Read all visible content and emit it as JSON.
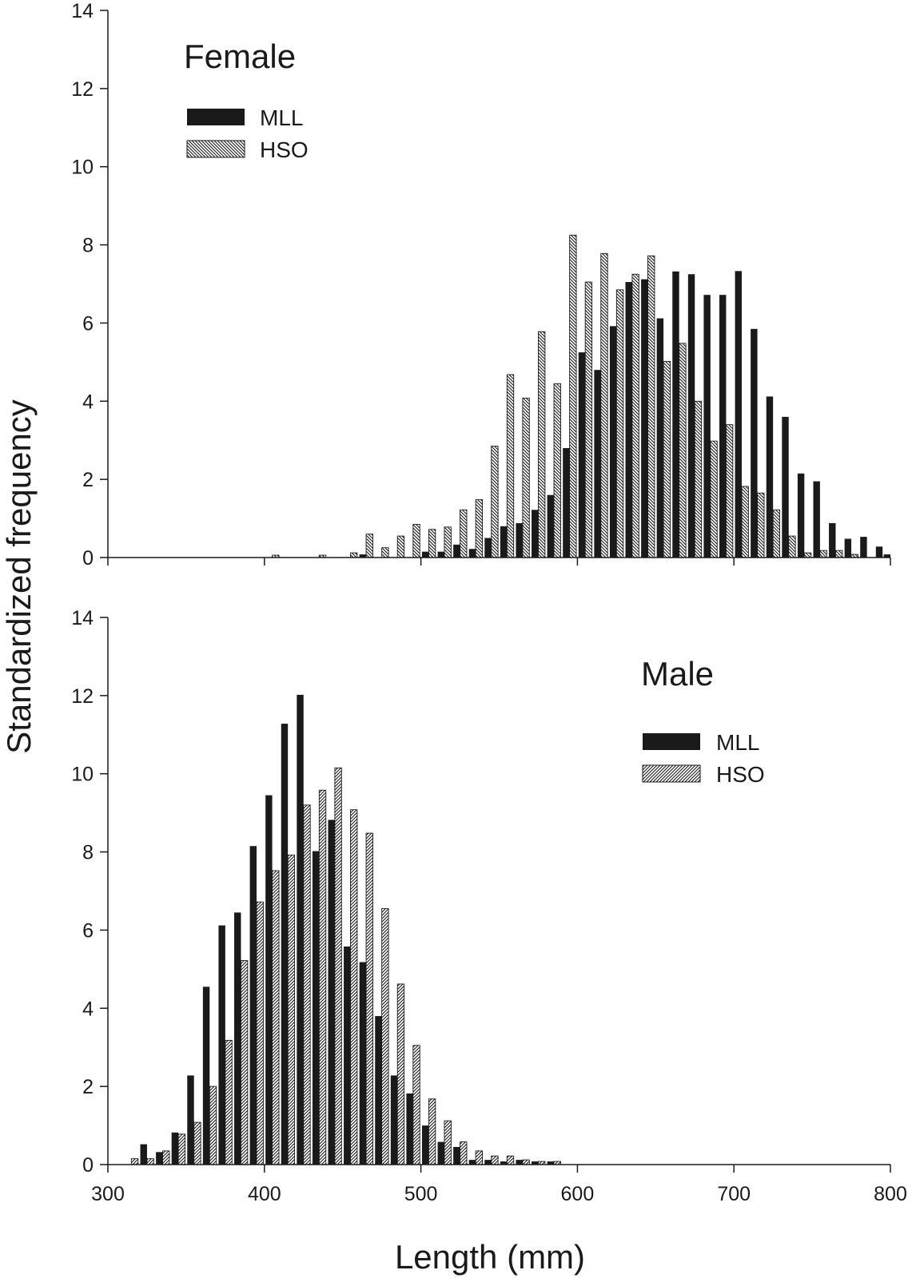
{
  "figure": {
    "xlabel": "Length (mm)",
    "ylabel": "Standardized frequency",
    "colors": {
      "mll": "#1a1a1a",
      "hso_fill": "#ffffff",
      "hso_hatch": "#1a1a1a",
      "axis": "#1a1a1a"
    }
  },
  "chart_data": [
    {
      "type": "bar",
      "title": "Female",
      "xlabel": "",
      "ylabel": "Standardized frequency",
      "xlim": [
        300,
        800
      ],
      "ylim": [
        0,
        14
      ],
      "xticks": [
        300,
        400,
        500,
        600,
        700,
        800
      ],
      "yticks": [
        0,
        2,
        4,
        6,
        8,
        10,
        12,
        14
      ],
      "xtick_labels_shown": false,
      "legend_position": "top-left",
      "bin_width": 10,
      "x": [
        405,
        415,
        425,
        435,
        445,
        455,
        465,
        475,
        485,
        495,
        505,
        515,
        525,
        535,
        545,
        555,
        565,
        575,
        585,
        595,
        605,
        615,
        625,
        635,
        645,
        655,
        665,
        675,
        685,
        695,
        705,
        715,
        725,
        735,
        745,
        755,
        765,
        775,
        785,
        795
      ],
      "series": [
        {
          "name": "MLL",
          "pattern": "solid",
          "values": [
            0,
            0,
            0,
            0,
            0,
            0,
            0.08,
            0,
            0,
            0,
            0.15,
            0.15,
            0.33,
            0.22,
            0.5,
            0.8,
            0.88,
            1.22,
            1.6,
            2.8,
            5.25,
            4.8,
            5.92,
            7.05,
            7.12,
            6.12,
            7.32,
            7.25,
            6.72,
            6.72,
            7.33,
            5.85,
            4.12,
            3.6,
            2.15,
            1.95,
            0.88,
            0.48,
            0.53,
            0.28
          ],
          "extra": [
            {
              "x": 800,
              "value": 0.08
            }
          ]
        },
        {
          "name": "HSO",
          "pattern": "hatched",
          "values": [
            0.06,
            0,
            0,
            0.06,
            0,
            0.12,
            0.6,
            0.25,
            0.55,
            0.85,
            0.72,
            0.78,
            1.22,
            1.48,
            2.85,
            4.68,
            4.08,
            5.78,
            4.45,
            8.25,
            7.05,
            7.78,
            6.85,
            7.25,
            7.72,
            5.02,
            5.48,
            4.0,
            2.98,
            3.4,
            1.82,
            1.65,
            1.22,
            0.55,
            0.12,
            0.18,
            0.18,
            0.08,
            0,
            0
          ]
        }
      ]
    },
    {
      "type": "bar",
      "title": "Male",
      "xlabel": "Length (mm)",
      "ylabel": "Standardized frequency",
      "xlim": [
        300,
        800
      ],
      "ylim": [
        0,
        14
      ],
      "xticks": [
        300,
        400,
        500,
        600,
        700,
        800
      ],
      "yticks": [
        0,
        2,
        4,
        6,
        8,
        10,
        12,
        14
      ],
      "xtick_labels_shown": true,
      "legend_position": "right",
      "bin_width": 10,
      "x": [
        315,
        325,
        335,
        345,
        355,
        365,
        375,
        385,
        395,
        405,
        415,
        425,
        435,
        445,
        455,
        465,
        475,
        485,
        495,
        505,
        515,
        525,
        535,
        545,
        555,
        565,
        575,
        585,
        595
      ],
      "series": [
        {
          "name": "MLL",
          "pattern": "solid",
          "values": [
            0,
            0.52,
            0.32,
            0.82,
            2.28,
            4.55,
            6.12,
            6.45,
            8.15,
            9.45,
            11.28,
            12.02,
            8.02,
            8.82,
            5.58,
            5.18,
            3.8,
            2.28,
            1.82,
            1.0,
            0.58,
            0.45,
            0.12,
            0.12,
            0.08,
            0.12,
            0.08,
            0.08,
            0
          ]
        },
        {
          "name": "HSO",
          "pattern": "hatched",
          "values": [
            0.15,
            0.15,
            0.35,
            0.78,
            1.08,
            2.0,
            3.18,
            5.22,
            6.72,
            7.52,
            7.92,
            9.2,
            9.58,
            10.15,
            9.08,
            8.48,
            6.55,
            4.62,
            3.05,
            1.68,
            1.12,
            0.58,
            0.35,
            0.22,
            0.22,
            0.12,
            0.08,
            0.08,
            0
          ]
        }
      ]
    }
  ]
}
